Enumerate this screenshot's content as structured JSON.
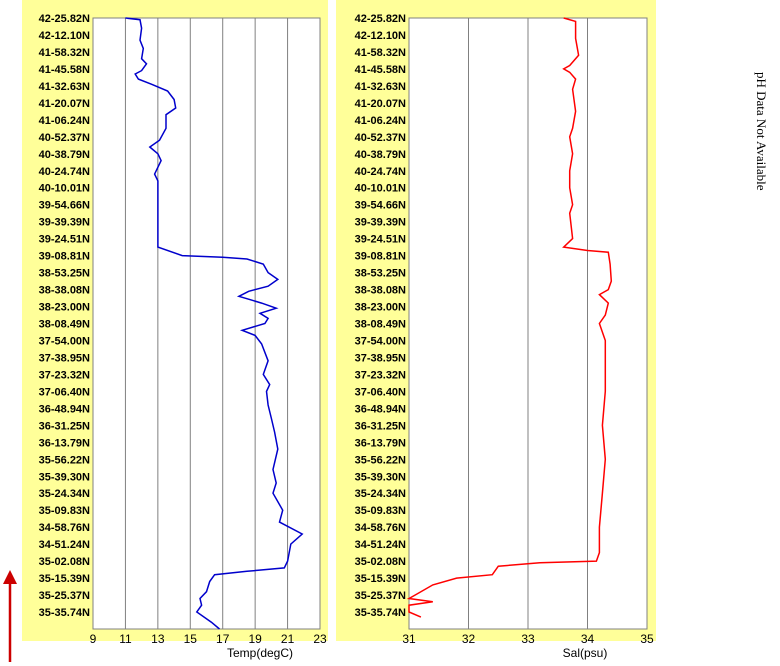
{
  "latitude_labels": [
    "42-25.82N",
    "42-12.10N",
    "41-58.32N",
    "41-45.58N",
    "41-32.63N",
    "41-20.07N",
    "41-06.24N",
    "40-52.37N",
    "40-38.79N",
    "40-24.74N",
    "40-10.01N",
    "39-54.66N",
    "39-39.39N",
    "39-24.51N",
    "39-08.81N",
    "38-53.25N",
    "38-38.08N",
    "38-23.00N",
    "38-08.49N",
    "37-54.00N",
    "37-38.95N",
    "37-23.32N",
    "37-06.40N",
    "36-48.94N",
    "36-31.25N",
    "36-13.79N",
    "35-56.22N",
    "35-39.30N",
    "35-24.34N",
    "35-09.83N",
    "34-58.76N",
    "34-51.24N",
    "35-02.08N",
    "35-15.39N",
    "35-25.37N",
    "35-35.74N"
  ],
  "side_note": "pH Data Not Available",
  "colors": {
    "panel": "#ffff99",
    "temp_line": "#0000cc",
    "sal_line": "#ff0000",
    "arrow": "#cc0000",
    "grid": "#808080"
  },
  "arrow_icon": "up-arrow-icon",
  "chart_data": [
    {
      "type": "line",
      "xlabel": "Temp(degC)",
      "xlim": [
        9,
        23
      ],
      "xticks": [
        9,
        11,
        13,
        15,
        17,
        19,
        21,
        23
      ],
      "ylabel": "",
      "y_categories_ref": "latitude_labels",
      "y_index_range": [
        0,
        36
      ],
      "series": [
        {
          "color": "#0000cc",
          "points": [
            [
              11.0,
              0.0
            ],
            [
              11.9,
              0.1
            ],
            [
              12.0,
              0.6
            ],
            [
              11.9,
              1.3
            ],
            [
              12.1,
              1.8
            ],
            [
              12.0,
              2.4
            ],
            [
              12.3,
              2.7
            ],
            [
              12.0,
              3.1
            ],
            [
              11.6,
              3.3
            ],
            [
              11.8,
              3.6
            ],
            [
              12.6,
              3.9
            ],
            [
              13.6,
              4.3
            ],
            [
              14.0,
              4.8
            ],
            [
              14.1,
              5.3
            ],
            [
              13.5,
              5.7
            ],
            [
              13.5,
              6.5
            ],
            [
              13.1,
              7.2
            ],
            [
              12.5,
              7.6
            ],
            [
              13.0,
              8.0
            ],
            [
              13.2,
              8.4
            ],
            [
              12.8,
              9.2
            ],
            [
              13.0,
              9.6
            ],
            [
              13.0,
              13.5
            ],
            [
              14.5,
              14.0
            ],
            [
              17.0,
              14.1
            ],
            [
              18.5,
              14.2
            ],
            [
              19.5,
              14.5
            ],
            [
              19.8,
              15.0
            ],
            [
              20.4,
              15.4
            ],
            [
              19.8,
              15.8
            ],
            [
              18.6,
              16.1
            ],
            [
              18.0,
              16.4
            ],
            [
              18.7,
              16.6
            ],
            [
              19.4,
              16.8
            ],
            [
              20.3,
              17.1
            ],
            [
              19.3,
              17.4
            ],
            [
              19.8,
              17.7
            ],
            [
              19.6,
              18.0
            ],
            [
              18.2,
              18.4
            ],
            [
              19.0,
              18.7
            ],
            [
              19.4,
              19.2
            ],
            [
              19.8,
              20.2
            ],
            [
              19.5,
              21.0
            ],
            [
              19.9,
              21.6
            ],
            [
              19.7,
              22.0
            ],
            [
              19.8,
              22.8
            ],
            [
              20.0,
              23.6
            ],
            [
              20.2,
              24.4
            ],
            [
              20.4,
              25.4
            ],
            [
              20.1,
              26.6
            ],
            [
              20.3,
              27.4
            ],
            [
              20.1,
              28.0
            ],
            [
              20.7,
              29.0
            ],
            [
              20.5,
              29.7
            ],
            [
              21.9,
              30.4
            ],
            [
              21.2,
              31.0
            ],
            [
              21.0,
              32.0
            ],
            [
              20.8,
              32.4
            ],
            [
              18.5,
              32.6
            ],
            [
              16.5,
              32.8
            ],
            [
              16.2,
              33.2
            ],
            [
              16.0,
              33.8
            ],
            [
              15.6,
              34.2
            ],
            [
              15.7,
              34.6
            ],
            [
              15.4,
              35.0
            ],
            [
              16.3,
              35.6
            ],
            [
              16.8,
              36.0
            ]
          ]
        }
      ]
    },
    {
      "type": "line",
      "xlabel": "Sal(psu)",
      "xlim": [
        31,
        35
      ],
      "xticks": [
        31,
        32,
        33,
        34,
        35
      ],
      "ylabel": "",
      "y_categories_ref": "latitude_labels",
      "y_index_range": [
        0,
        36
      ],
      "series": [
        {
          "color": "#ff0000",
          "points": [
            [
              33.6,
              0.0
            ],
            [
              33.8,
              0.2
            ],
            [
              33.8,
              1.2
            ],
            [
              33.85,
              2.2
            ],
            [
              33.7,
              2.8
            ],
            [
              33.6,
              3.0
            ],
            [
              33.7,
              3.2
            ],
            [
              33.8,
              3.6
            ],
            [
              33.75,
              4.2
            ],
            [
              33.8,
              5.5
            ],
            [
              33.75,
              6.5
            ],
            [
              33.7,
              7.0
            ],
            [
              33.75,
              8.0
            ],
            [
              33.7,
              9.0
            ],
            [
              33.7,
              10.0
            ],
            [
              33.75,
              11.0
            ],
            [
              33.7,
              11.5
            ],
            [
              33.75,
              13.0
            ],
            [
              33.6,
              13.5
            ],
            [
              34.0,
              13.7
            ],
            [
              34.35,
              13.8
            ],
            [
              34.38,
              14.5
            ],
            [
              34.4,
              15.5
            ],
            [
              34.35,
              16.0
            ],
            [
              34.2,
              16.3
            ],
            [
              34.35,
              16.8
            ],
            [
              34.3,
              17.5
            ],
            [
              34.2,
              18.0
            ],
            [
              34.3,
              19.0
            ],
            [
              34.3,
              20.0
            ],
            [
              34.3,
              22.0
            ],
            [
              34.25,
              24.0
            ],
            [
              34.3,
              26.0
            ],
            [
              34.25,
              28.0
            ],
            [
              34.2,
              30.0
            ],
            [
              34.2,
              31.5
            ],
            [
              34.15,
              32.0
            ],
            [
              33.2,
              32.1
            ],
            [
              32.5,
              32.3
            ],
            [
              32.4,
              32.8
            ],
            [
              31.8,
              33.0
            ],
            [
              31.4,
              33.4
            ],
            [
              31.1,
              34.0
            ],
            [
              31.0,
              34.2
            ],
            [
              31.4,
              34.4
            ],
            [
              31.0,
              34.6
            ],
            [
              31.0,
              35.0
            ],
            [
              31.2,
              35.3
            ]
          ]
        }
      ]
    }
  ]
}
